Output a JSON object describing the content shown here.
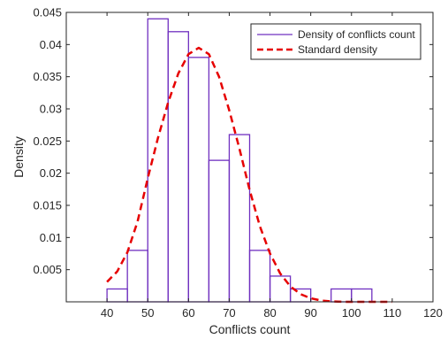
{
  "chart_data": {
    "type": "bar",
    "title": "",
    "xlabel": "Conflicts count",
    "ylabel": "Density",
    "xlim": [
      30,
      120
    ],
    "ylim": [
      0,
      0.045
    ],
    "xticks": [
      40,
      50,
      60,
      70,
      80,
      90,
      100,
      110,
      120
    ],
    "yticks": [
      0.005,
      0.01,
      0.015,
      0.02,
      0.025,
      0.03,
      0.035,
      0.04,
      0.045
    ],
    "ytick_labels": [
      "0.005",
      "0.01",
      "0.015",
      "0.02",
      "0.025",
      "0.03",
      "0.035",
      "0.04",
      "0.045"
    ],
    "grid": false,
    "legend_position": "top-right",
    "histogram": {
      "name": "Density of conflicts count",
      "color": "#7030c0",
      "bin_edges": [
        40,
        45,
        50,
        55,
        60,
        65,
        70,
        75,
        80,
        85,
        90,
        95,
        100,
        105
      ],
      "values": [
        0.002,
        0.008,
        0.044,
        0.042,
        0.038,
        0.022,
        0.026,
        0.008,
        0.004,
        0.002,
        0.0,
        0.002,
        0.002
      ]
    },
    "density_curve": {
      "name": "Standard density",
      "color": "#e60000",
      "style": "dashed",
      "x": [
        40,
        42.5,
        45,
        47.5,
        50,
        52.5,
        55,
        57.5,
        60,
        62.5,
        65,
        67.5,
        70,
        72.5,
        75,
        77.5,
        80,
        82.5,
        85,
        87.5,
        90,
        92.5,
        95,
        97.5,
        100,
        102.5,
        105,
        107.5,
        110
      ],
      "y": [
        0.0031,
        0.0047,
        0.0077,
        0.0125,
        0.0192,
        0.0255,
        0.031,
        0.0355,
        0.0385,
        0.0395,
        0.0385,
        0.035,
        0.0298,
        0.0238,
        0.0174,
        0.0118,
        0.0075,
        0.0044,
        0.0024,
        0.0012,
        0.00055,
        0.0002,
        7e-05,
        2e-05,
        0.0,
        0.0,
        0.0,
        0.0,
        0.0
      ]
    }
  }
}
